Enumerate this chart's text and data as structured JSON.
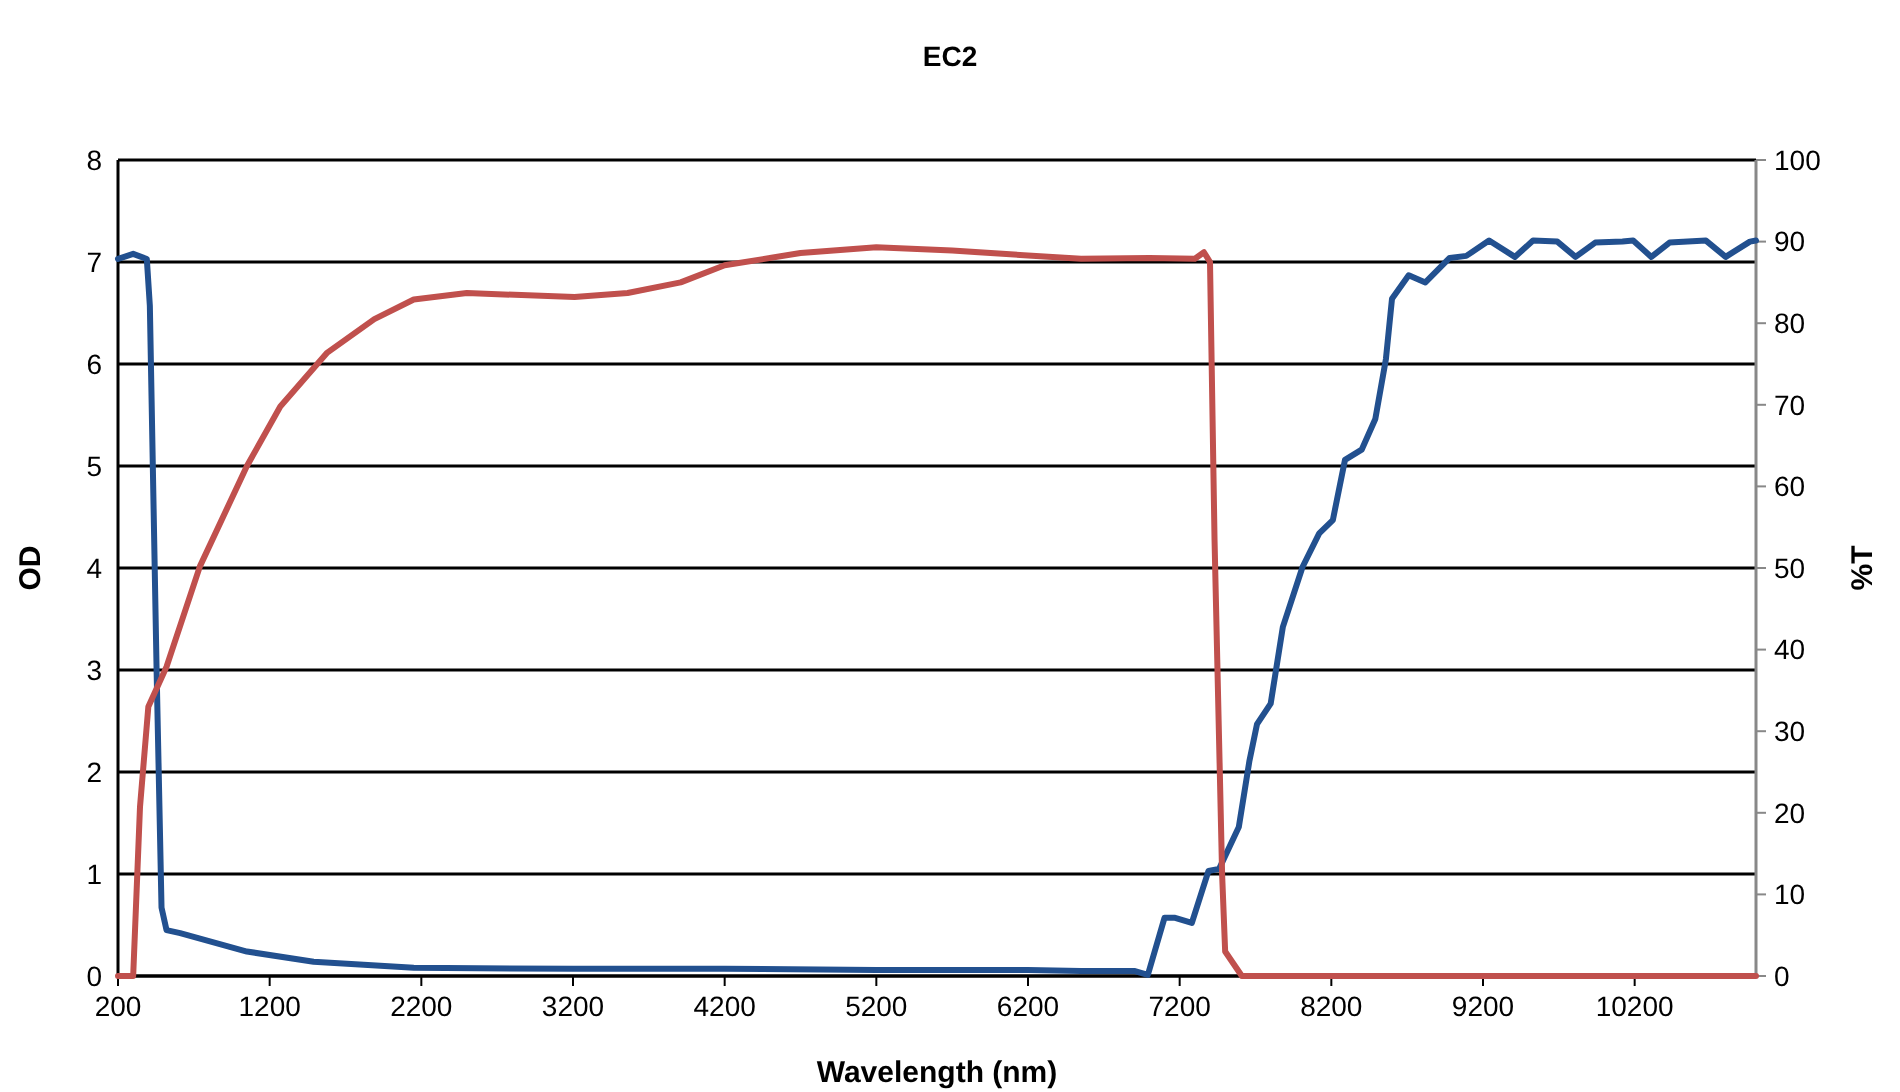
{
  "chart_data": {
    "type": "line",
    "title": "EC2",
    "xlabel": "Wavelength (nm)",
    "ylabel": "OD",
    "y2label": "%T",
    "xlim": [
      200,
      11000
    ],
    "xticks": [
      200,
      1200,
      2200,
      3200,
      4200,
      5200,
      6200,
      7200,
      8200,
      9200,
      10200
    ],
    "ylim": [
      0,
      8
    ],
    "yticks": [
      0,
      1,
      2,
      3,
      4,
      5,
      6,
      7,
      8
    ],
    "y2lim": [
      0,
      100
    ],
    "y2ticks": [
      0,
      10,
      20,
      30,
      40,
      50,
      60,
      70,
      80,
      90,
      100
    ],
    "grid": "y",
    "line_style": "solid",
    "marker": "none",
    "series": [
      {
        "color": "#22508f",
        "x": [
          200,
          300,
          390,
          410,
          455,
          487,
          520,
          610,
          1050,
          1490,
          2150,
          3200,
          4200,
          5200,
          6200,
          6550,
          6900,
          6990,
          7100,
          7170,
          7280,
          7390,
          7460,
          7590,
          7660,
          7710,
          7800,
          7880,
          8010,
          8120,
          8210,
          8290,
          8400,
          8490,
          8560,
          8600,
          8710,
          8820,
          8980,
          9090,
          9240,
          9410,
          9530,
          9690,
          9810,
          9940,
          10120,
          10190,
          10310,
          10430,
          10670,
          10800,
          10960,
          11000
        ],
        "values": [
          7.03,
          7.08,
          7.03,
          6.57,
          2.96,
          0.67,
          0.45,
          0.42,
          0.24,
          0.14,
          0.08,
          0.07,
          0.07,
          0.06,
          0.06,
          0.05,
          0.05,
          0.01,
          0.57,
          0.57,
          0.52,
          1.03,
          1.05,
          1.46,
          2.11,
          2.47,
          2.67,
          3.42,
          4.01,
          4.34,
          4.47,
          5.06,
          5.16,
          5.46,
          6.05,
          6.64,
          6.87,
          6.8,
          7.04,
          7.06,
          7.21,
          7.05,
          7.21,
          7.2,
          7.05,
          7.19,
          7.2,
          7.21,
          7.05,
          7.19,
          7.21,
          7.05,
          7.2,
          7.21
        ]
      },
      {
        "color": "#c0504d",
        "axis": "y2",
        "x": [
          200,
          300,
          345,
          400,
          520,
          740,
          1050,
          1270,
          1580,
          1890,
          2150,
          2500,
          3210,
          3560,
          3910,
          4200,
          4700,
          5200,
          5700,
          6200,
          6550,
          7000,
          7300,
          7360,
          7400,
          7430,
          7480,
          7500,
          7610,
          8200,
          9200,
          10200,
          11000
        ],
        "values": [
          0,
          0,
          20.7,
          33,
          37.9,
          50.2,
          62.5,
          69.8,
          76.4,
          80.5,
          82.9,
          83.7,
          83.2,
          83.7,
          85,
          87.1,
          88.6,
          89.3,
          88.9,
          88.3,
          87.9,
          88,
          87.9,
          88.7,
          87.5,
          53.4,
          12.4,
          3,
          0,
          0,
          0,
          0,
          0
        ]
      }
    ]
  }
}
